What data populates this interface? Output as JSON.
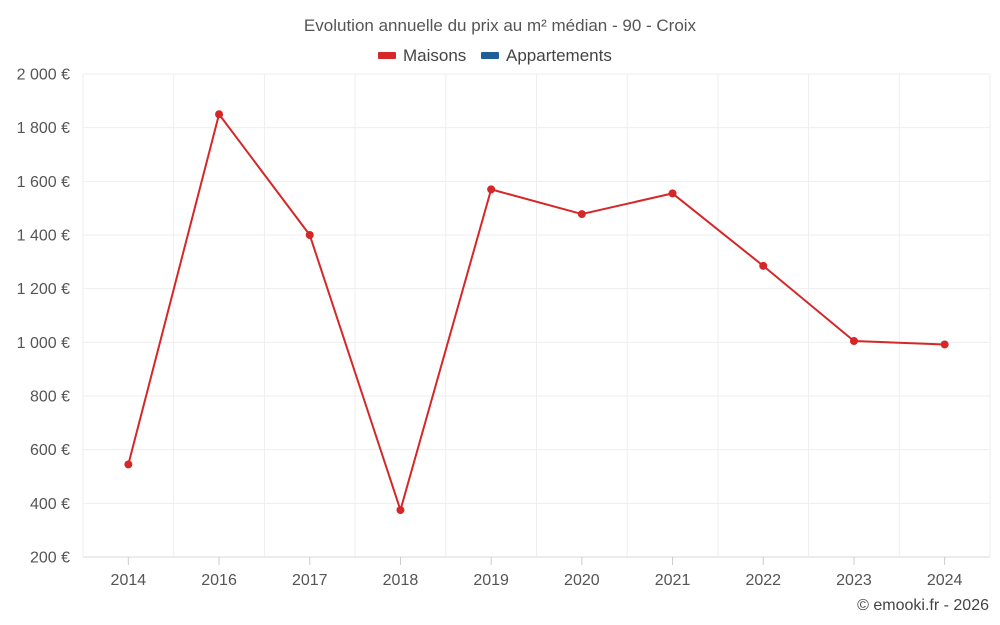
{
  "chart_data": {
    "type": "line",
    "title": "Evolution annuelle du prix au m² médian - 90 - Croix",
    "categories": [
      "2014",
      "2016",
      "2017",
      "2018",
      "2019",
      "2020",
      "2021",
      "2022",
      "2023",
      "2024"
    ],
    "series": [
      {
        "name": "Maisons",
        "color": "#d62728",
        "values": [
          545,
          1850,
          1400,
          375,
          1570,
          1478,
          1555,
          1285,
          1005,
          992
        ]
      },
      {
        "name": "Appartements",
        "color": "#1f5f99",
        "values": [
          null,
          null,
          null,
          null,
          null,
          null,
          null,
          null,
          null,
          null
        ]
      }
    ],
    "y_ticks": [
      "200 €",
      "400 €",
      "600 €",
      "800 €",
      "1 000 €",
      "1 200 €",
      "1 400 €",
      "1 600 €",
      "1 800 €",
      "2 000 €"
    ],
    "ylim": [
      200,
      2000
    ],
    "grid": true,
    "legend_position": "top-center",
    "credit": "© emooki.fr - 2026"
  }
}
